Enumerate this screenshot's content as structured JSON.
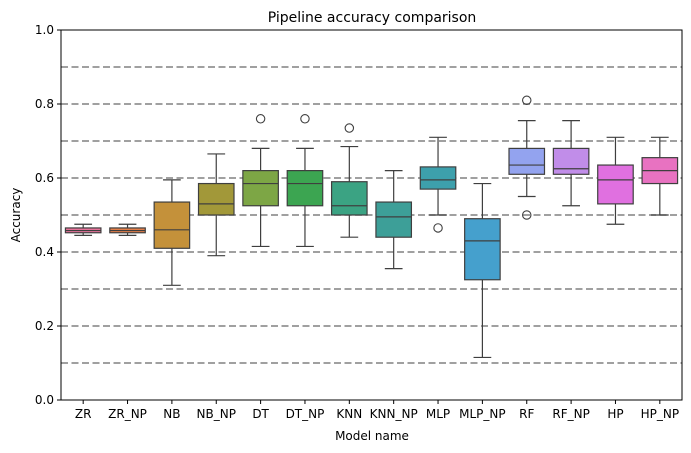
{
  "chart_data": {
    "type": "box",
    "title": "Pipeline accuracy comparison",
    "xlabel": "Model name",
    "ylabel": "Accuracy",
    "ylim": [
      0,
      1
    ],
    "yticks": [
      0.0,
      0.2,
      0.4,
      0.6,
      0.8,
      1.0
    ],
    "ytick_labels": [
      "0.0",
      "0.2",
      "0.4",
      "0.6",
      "0.8",
      "1.0"
    ],
    "hlines": [
      0.1,
      0.2,
      0.3,
      0.4,
      0.5,
      0.6,
      0.7,
      0.8,
      0.9
    ],
    "categories": [
      "ZR",
      "ZR_NP",
      "NB",
      "NB_NP",
      "DT",
      "DT_NP",
      "KNN",
      "KNN_NP",
      "MLP",
      "MLP_NP",
      "RF",
      "RF_NP",
      "HP",
      "HP_NP"
    ],
    "boxes": [
      {
        "category": "ZR",
        "color": "#e8739a",
        "whislo": 0.445,
        "q1": 0.452,
        "med": 0.458,
        "q3": 0.465,
        "whishi": 0.475,
        "fliers": []
      },
      {
        "category": "ZR_NP",
        "color": "#e47f4a",
        "whislo": 0.445,
        "q1": 0.452,
        "med": 0.458,
        "q3": 0.465,
        "whishi": 0.475,
        "fliers": []
      },
      {
        "category": "NB",
        "color": "#c4913a",
        "whislo": 0.31,
        "q1": 0.41,
        "med": 0.46,
        "q3": 0.535,
        "whishi": 0.595,
        "fliers": []
      },
      {
        "category": "NB_NP",
        "color": "#a29839",
        "whislo": 0.39,
        "q1": 0.5,
        "med": 0.53,
        "q3": 0.585,
        "whishi": 0.665,
        "fliers": []
      },
      {
        "category": "DT",
        "color": "#7da645",
        "whislo": 0.415,
        "q1": 0.525,
        "med": 0.585,
        "q3": 0.62,
        "whishi": 0.68,
        "fliers": [
          0.76
        ]
      },
      {
        "category": "DT_NP",
        "color": "#3ca551",
        "whislo": 0.415,
        "q1": 0.525,
        "med": 0.585,
        "q3": 0.62,
        "whishi": 0.68,
        "fliers": [
          0.76
        ]
      },
      {
        "category": "KNN",
        "color": "#3ba383",
        "whislo": 0.44,
        "q1": 0.5,
        "med": 0.525,
        "q3": 0.59,
        "whishi": 0.685,
        "fliers": [
          0.735
        ]
      },
      {
        "category": "KNN_NP",
        "color": "#3d9f98",
        "whislo": 0.355,
        "q1": 0.44,
        "med": 0.495,
        "q3": 0.535,
        "whishi": 0.62,
        "fliers": []
      },
      {
        "category": "MLP",
        "color": "#3da0ac",
        "whislo": 0.5,
        "q1": 0.57,
        "med": 0.595,
        "q3": 0.63,
        "whishi": 0.71,
        "fliers": [
          0.465
        ]
      },
      {
        "category": "MLP_NP",
        "color": "#45a0cd",
        "whislo": 0.115,
        "q1": 0.325,
        "med": 0.43,
        "q3": 0.49,
        "whishi": 0.585,
        "fliers": []
      },
      {
        "category": "RF",
        "color": "#93a3ef",
        "whislo": 0.55,
        "q1": 0.61,
        "med": 0.635,
        "q3": 0.68,
        "whishi": 0.755,
        "fliers": [
          0.5,
          0.81
        ]
      },
      {
        "category": "RF_NP",
        "color": "#c18de9",
        "whislo": 0.525,
        "q1": 0.61,
        "med": 0.625,
        "q3": 0.68,
        "whishi": 0.755,
        "fliers": []
      },
      {
        "category": "HP",
        "color": "#e070e0",
        "whislo": 0.475,
        "q1": 0.53,
        "med": 0.595,
        "q3": 0.635,
        "whishi": 0.71,
        "fliers": []
      },
      {
        "category": "HP_NP",
        "color": "#e872c1",
        "whislo": 0.5,
        "q1": 0.585,
        "med": 0.62,
        "q3": 0.655,
        "whishi": 0.71,
        "fliers": []
      }
    ]
  }
}
